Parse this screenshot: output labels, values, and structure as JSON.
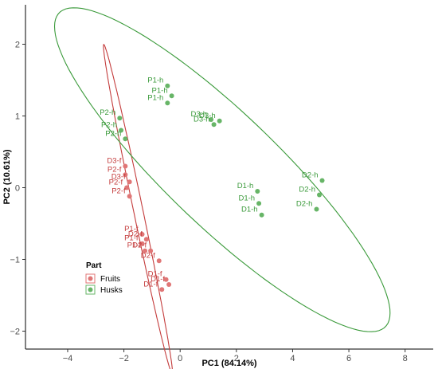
{
  "chart_data": {
    "type": "scatter",
    "xlabel": "PC1 (84.14%)",
    "ylabel": "PC2 (10.61%)",
    "xlim": [
      -5.5,
      9
    ],
    "ylim": [
      -2.25,
      2.55
    ],
    "xticks": [
      -4,
      -2,
      0,
      2,
      4,
      6,
      8
    ],
    "yticks": [
      -2,
      -1,
      0,
      1,
      2
    ],
    "grid": false,
    "legend": {
      "title": "Part",
      "position": "bottom-left",
      "entries": [
        {
          "label": "Fruits",
          "color": "#e07676"
        },
        {
          "label": "Husks",
          "color": "#67b567"
        }
      ]
    },
    "series": [
      {
        "name": "Fruits",
        "color": "#e07676",
        "ellipse_color": "#c43c3c",
        "ellipse": {
          "center": [
            -1.5,
            -0.3
          ],
          "semi_major": 2.6,
          "semi_minor": 0.15,
          "angle_deg": -62
        },
        "points": [
          {
            "label": "D3-f",
            "x": -1.95,
            "y": 0.3
          },
          {
            "label": "P2-f",
            "x": -1.95,
            "y": 0.18
          },
          {
            "label": "D3-f",
            "x": -1.8,
            "y": 0.08
          },
          {
            "label": "P2-f",
            "x": -1.9,
            "y": 0.0
          },
          {
            "label": "P2-f",
            "x": -1.8,
            "y": -0.12
          },
          {
            "label": "P1-f",
            "x": -1.35,
            "y": -0.65
          },
          {
            "label": "D2-f",
            "x": -1.2,
            "y": -0.72
          },
          {
            "label": "P1-f",
            "x": -1.35,
            "y": -0.78
          },
          {
            "label": "P1-f",
            "x": -1.25,
            "y": -0.88
          },
          {
            "label": "D2-f",
            "x": -1.05,
            "y": -0.88
          },
          {
            "label": "D2-f",
            "x": -0.75,
            "y": -1.02
          },
          {
            "label": "D1-f",
            "x": -0.5,
            "y": -1.28
          },
          {
            "label": "D1-f",
            "x": -0.4,
            "y": -1.35
          },
          {
            "label": "D1-f",
            "x": -0.65,
            "y": -1.42
          }
        ]
      },
      {
        "name": "Husks",
        "color": "#67b567",
        "ellipse_color": "#3a9a3a",
        "ellipse": {
          "center": [
            1.5,
            0.25
          ],
          "semi_major": 6.3,
          "semi_minor": 1.0,
          "angle_deg": -19
        },
        "points": [
          {
            "label": "P1-h",
            "x": -0.45,
            "y": 1.42
          },
          {
            "label": "P1-h",
            "x": -0.3,
            "y": 1.28
          },
          {
            "label": "P1-h",
            "x": -0.45,
            "y": 1.18
          },
          {
            "label": "P2-h",
            "x": -2.15,
            "y": 0.97
          },
          {
            "label": "P2-h",
            "x": -2.1,
            "y": 0.8
          },
          {
            "label": "P2-h",
            "x": -1.95,
            "y": 0.68
          },
          {
            "label": "D3-h",
            "x": 1.1,
            "y": 0.95
          },
          {
            "label": "D3-h",
            "x": 1.4,
            "y": 0.93
          },
          {
            "label": "D3-h",
            "x": 1.2,
            "y": 0.88
          },
          {
            "label": "D1-h",
            "x": 2.75,
            "y": -0.05
          },
          {
            "label": "D1-h",
            "x": 2.8,
            "y": -0.22
          },
          {
            "label": "D1-h",
            "x": 2.9,
            "y": -0.38
          },
          {
            "label": "D2-h",
            "x": 5.05,
            "y": 0.1
          },
          {
            "label": "D2-h",
            "x": 4.95,
            "y": -0.1
          },
          {
            "label": "D2-h",
            "x": 4.85,
            "y": -0.3
          }
        ]
      }
    ]
  }
}
